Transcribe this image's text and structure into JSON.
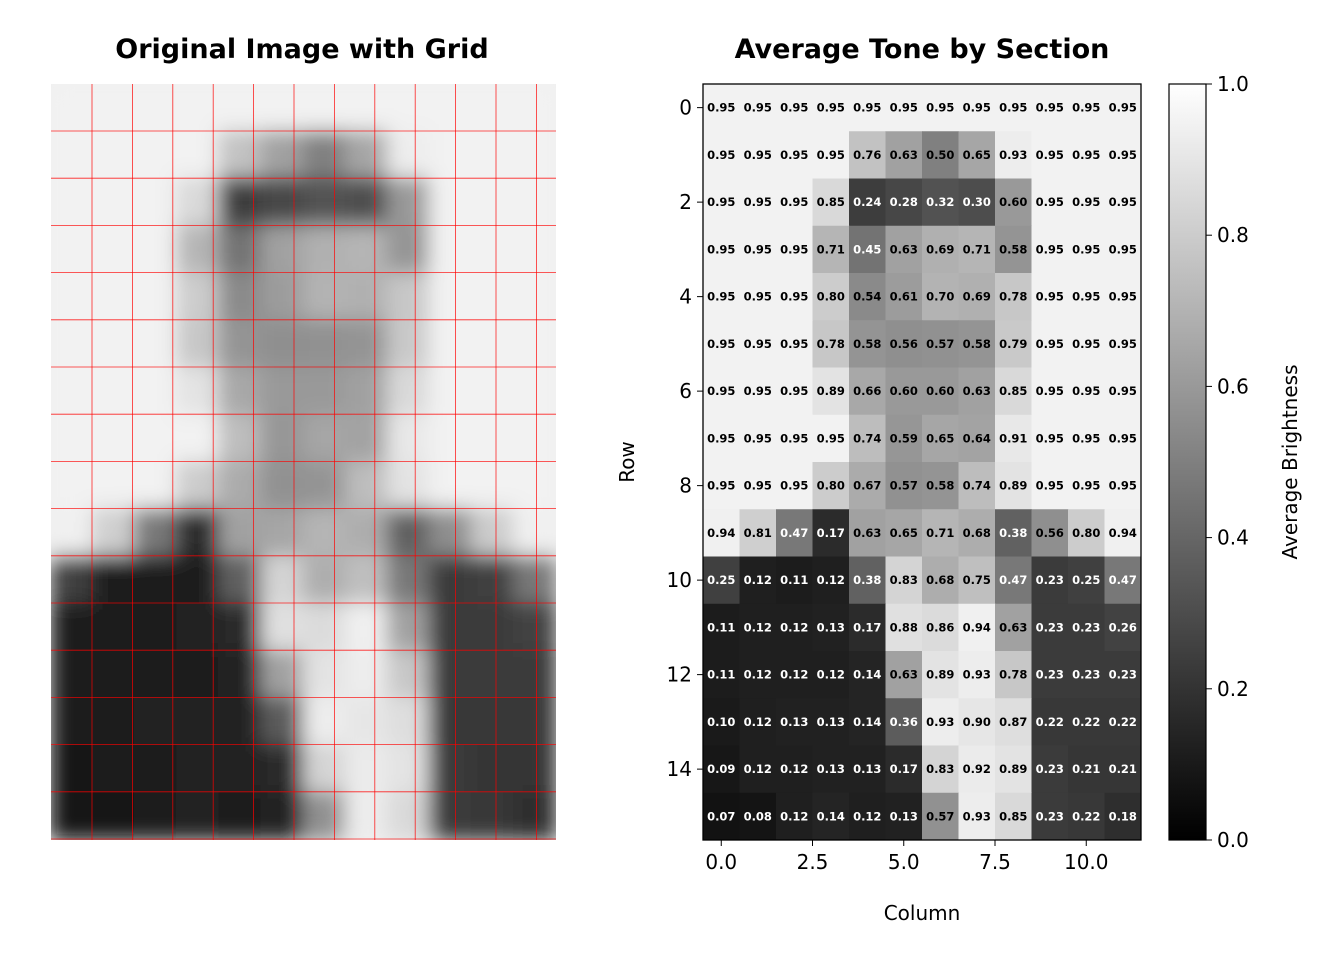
{
  "chart_data": [
    {
      "type": "image",
      "title": "Original Image with Grid",
      "grid_rows": 16,
      "grid_cols": 12,
      "grid_color": "#ff0000"
    },
    {
      "type": "heatmap",
      "title": "Average Tone by Section",
      "xlabel": "Column",
      "ylabel": "Row",
      "xticks": [
        "0.0",
        "2.5",
        "5.0",
        "7.5",
        "10.0"
      ],
      "xtick_values": [
        0,
        2.5,
        5,
        7.5,
        10
      ],
      "yticks": [
        "0",
        "2",
        "4",
        "6",
        "8",
        "10",
        "12",
        "14"
      ],
      "ytick_values": [
        0,
        2,
        4,
        6,
        8,
        10,
        12,
        14
      ],
      "colormap": "gray",
      "vmin": 0,
      "vmax": 1,
      "colorbar_label": "Average Brightness",
      "colorbar_ticks": [
        "0.0",
        "0.2",
        "0.4",
        "0.6",
        "0.8",
        "1.0"
      ],
      "colorbar_tick_values": [
        0,
        0.2,
        0.4,
        0.6,
        0.8,
        1.0
      ],
      "values": [
        [
          0.95,
          0.95,
          0.95,
          0.95,
          0.95,
          0.95,
          0.95,
          0.95,
          0.95,
          0.95,
          0.95,
          0.95
        ],
        [
          0.95,
          0.95,
          0.95,
          0.95,
          0.76,
          0.63,
          0.5,
          0.65,
          0.93,
          0.95,
          0.95,
          0.95
        ],
        [
          0.95,
          0.95,
          0.95,
          0.85,
          0.24,
          0.28,
          0.32,
          0.3,
          0.6,
          0.95,
          0.95,
          0.95
        ],
        [
          0.95,
          0.95,
          0.95,
          0.71,
          0.45,
          0.63,
          0.69,
          0.71,
          0.58,
          0.95,
          0.95,
          0.95
        ],
        [
          0.95,
          0.95,
          0.95,
          0.8,
          0.54,
          0.61,
          0.7,
          0.69,
          0.78,
          0.95,
          0.95,
          0.95
        ],
        [
          0.95,
          0.95,
          0.95,
          0.78,
          0.58,
          0.56,
          0.57,
          0.58,
          0.79,
          0.95,
          0.95,
          0.95
        ],
        [
          0.95,
          0.95,
          0.95,
          0.89,
          0.66,
          0.6,
          0.6,
          0.63,
          0.85,
          0.95,
          0.95,
          0.95
        ],
        [
          0.95,
          0.95,
          0.95,
          0.95,
          0.74,
          0.59,
          0.65,
          0.64,
          0.91,
          0.95,
          0.95,
          0.95
        ],
        [
          0.95,
          0.95,
          0.95,
          0.8,
          0.67,
          0.57,
          0.58,
          0.74,
          0.89,
          0.95,
          0.95,
          0.95
        ],
        [
          0.94,
          0.81,
          0.47,
          0.17,
          0.63,
          0.65,
          0.71,
          0.68,
          0.38,
          0.56,
          0.8,
          0.94
        ],
        [
          0.25,
          0.12,
          0.11,
          0.12,
          0.38,
          0.83,
          0.68,
          0.75,
          0.47,
          0.23,
          0.25,
          0.47
        ],
        [
          0.11,
          0.12,
          0.12,
          0.13,
          0.17,
          0.88,
          0.86,
          0.94,
          0.63,
          0.23,
          0.23,
          0.26
        ],
        [
          0.11,
          0.12,
          0.12,
          0.12,
          0.14,
          0.63,
          0.89,
          0.93,
          0.78,
          0.23,
          0.23,
          0.23
        ],
        [
          0.1,
          0.12,
          0.13,
          0.13,
          0.14,
          0.36,
          0.93,
          0.9,
          0.87,
          0.22,
          0.22,
          0.22
        ],
        [
          0.09,
          0.12,
          0.12,
          0.13,
          0.13,
          0.17,
          0.83,
          0.92,
          0.89,
          0.23,
          0.21,
          0.21
        ],
        [
          0.07,
          0.08,
          0.12,
          0.14,
          0.12,
          0.13,
          0.57,
          0.93,
          0.85,
          0.23,
          0.22,
          0.18
        ]
      ]
    }
  ]
}
